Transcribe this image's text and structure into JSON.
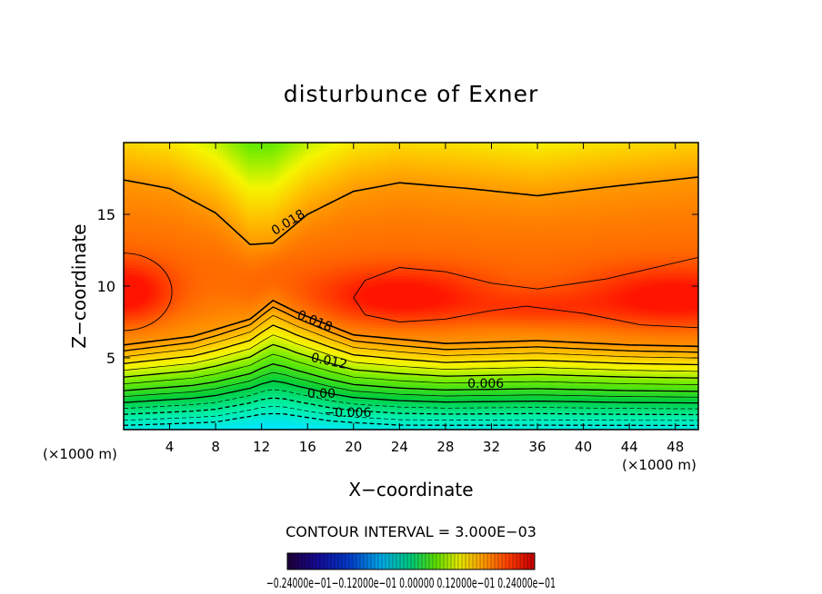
{
  "chart_data": {
    "type": "heatmap",
    "subtype": "filled-contour",
    "title": "disturbunce of Exner",
    "xlabel": "X−coordinate",
    "ylabel": "Z−coordinate",
    "x_unit": "(×1000 m)",
    "z_unit": "(×1000 m)",
    "xlim": [
      0,
      50
    ],
    "ylim": [
      0,
      20
    ],
    "x_ticks": [
      4,
      8,
      12,
      16,
      20,
      24,
      28,
      32,
      36,
      40,
      44,
      48
    ],
    "y_ticks": [
      5,
      10,
      15
    ],
    "contour_interval_text": "CONTOUR INTERVAL = 3.000E−03",
    "contour_interval": 0.003,
    "contour_labels": [
      {
        "text": "0.018",
        "x": 14.5,
        "z": 14.2
      },
      {
        "text": "0.018",
        "x": 16.5,
        "z": 7.3
      },
      {
        "text": "0.012",
        "x": 17.8,
        "z": 4.5
      },
      {
        "text": "0.006",
        "x": 31.5,
        "z": 2.9
      },
      {
        "text": "0.00",
        "x": 17.2,
        "z": 2.2
      },
      {
        "text": "−0.006",
        "x": 19.5,
        "z": 0.9
      }
    ],
    "colorbar_min": -0.024,
    "colorbar_max": 0.024,
    "colorbar_label_text": "−0.24000e−01−0.12000e−01 0.00000 0.12000e−01 0.24000e−01",
    "grid": false
  }
}
